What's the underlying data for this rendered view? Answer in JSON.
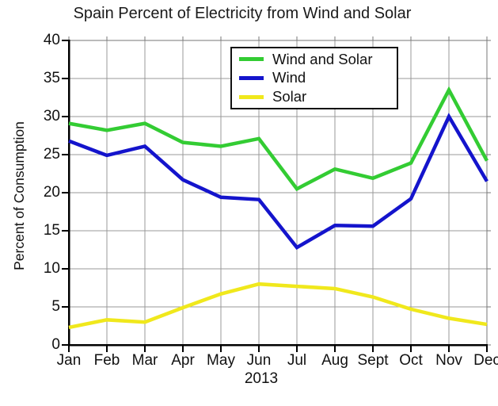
{
  "figure": {
    "title": "Spain Percent of Electricity from Wind and Solar",
    "background": "#ffffff"
  },
  "chart_data": {
    "type": "line",
    "title": "Spain Percent of Electricity from Wind and Solar",
    "xlabel": "2013",
    "ylabel": "Percent of Consumption",
    "categories": [
      "Jan",
      "Feb",
      "Mar",
      "Apr",
      "May",
      "Jun",
      "Jul",
      "Aug",
      "Sept",
      "Oct",
      "Nov",
      "Dec"
    ],
    "series": [
      {
        "name": "Wind and Solar",
        "color": "#33cc33",
        "values": [
          29.1,
          28.2,
          29.1,
          26.6,
          26.1,
          27.1,
          20.5,
          23.1,
          21.9,
          23.9,
          33.5,
          24.2
        ]
      },
      {
        "name": "Wind",
        "color": "#1414cc",
        "values": [
          26.8,
          24.9,
          26.1,
          21.7,
          19.4,
          19.1,
          12.8,
          15.7,
          15.6,
          19.2,
          30.0,
          21.5
        ]
      },
      {
        "name": "Solar",
        "color": "#f0e81c",
        "values": [
          2.3,
          3.3,
          3.0,
          4.9,
          6.7,
          8.0,
          7.7,
          7.4,
          6.3,
          4.7,
          3.5,
          2.7
        ]
      }
    ],
    "ylim": [
      0,
      40
    ],
    "ytick_step": 5,
    "grid": true,
    "legend_position": "top-center",
    "colors": {
      "gridline": "#999999",
      "frame": "#777777",
      "axis": "#000000"
    }
  }
}
